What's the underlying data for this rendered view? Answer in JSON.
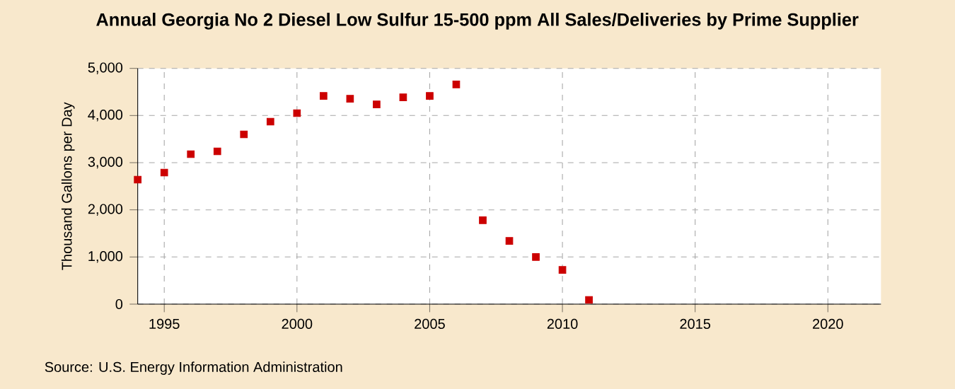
{
  "chart_data": {
    "type": "scatter",
    "title": "Annual Georgia No 2 Diesel Low Sulfur 15-500 ppm All Sales/Deliveries by Prime Supplier",
    "ylabel": "Thousand Gallons per Day",
    "x": [
      1994,
      1995,
      1996,
      1997,
      1998,
      1999,
      2000,
      2001,
      2002,
      2003,
      2004,
      2005,
      2006,
      2007,
      2008,
      2009,
      2010,
      2011
    ],
    "series": [
      {
        "color": "#cc0000",
        "values": [
          2640,
          2790,
          3180,
          3240,
          3600,
          3870,
          4050,
          4415,
          4355,
          4235,
          4385,
          4415,
          4660,
          1780,
          1340,
          1000,
          725,
          90
        ]
      }
    ],
    "marker": "square",
    "grid": true,
    "xlim": [
      1994,
      2022
    ],
    "xticks": [
      1995,
      2000,
      2005,
      2010,
      2015,
      2020
    ],
    "ylim": [
      0,
      5000
    ],
    "yticks": [
      {
        "value": 0,
        "label": "0"
      },
      {
        "value": 1000,
        "label": "1,000"
      },
      {
        "value": 2000,
        "label": "2,000"
      },
      {
        "value": 3000,
        "label": "3,000"
      },
      {
        "value": 4000,
        "label": "4,000"
      },
      {
        "value": 5000,
        "label": "5,000"
      }
    ],
    "annotations": [
      "Source: U.S. Energy Information Administration"
    ]
  }
}
